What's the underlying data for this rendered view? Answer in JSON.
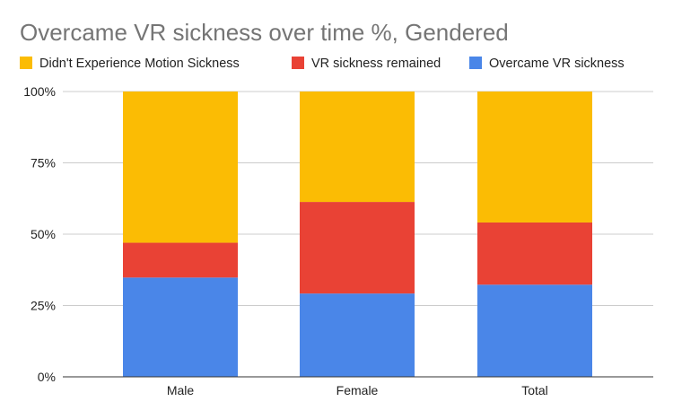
{
  "chart_data": {
    "type": "bar",
    "stacked": true,
    "normalized": true,
    "title": "Overcame VR sickness over time %, Gendered",
    "xlabel": "",
    "ylabel": "",
    "ylim": [
      0,
      100
    ],
    "yticks": [
      0,
      25,
      50,
      75,
      100
    ],
    "ytick_labels": [
      "0%",
      "25%",
      "50%",
      "75%",
      "100%"
    ],
    "categories": [
      "Male",
      "Female",
      "Total"
    ],
    "legend_position": "top-left",
    "grid": true,
    "series": [
      {
        "name": "Overcame VR sickness",
        "color": "#4a86e8",
        "values": [
          34.8,
          29.2,
          32.3
        ]
      },
      {
        "name": "VR sickness remained",
        "color": "#e94235",
        "values": [
          12.2,
          32.1,
          21.8
        ]
      },
      {
        "name": "Didn't Experience Motion Sickness",
        "color": "#fbbc04",
        "values": [
          53.0,
          38.7,
          45.9
        ]
      }
    ],
    "legend_order": [
      "Didn't Experience Motion Sickness",
      "VR sickness remained",
      "Overcame VR sickness"
    ]
  }
}
